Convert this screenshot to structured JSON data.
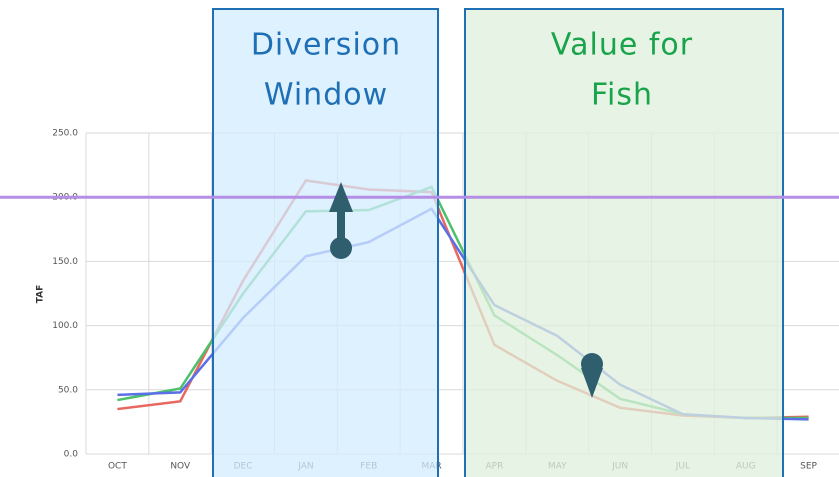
{
  "chart_data": {
    "type": "line",
    "y_label": "TAF",
    "categories": [
      "OCT",
      "NOV",
      "DEC",
      "JAN",
      "FEB",
      "MAR",
      "APR",
      "MAY",
      "JUN",
      "JUL",
      "AUG",
      "SEP"
    ],
    "series": [
      {
        "color": "#e8675f",
        "values": [
          35,
          41,
          135,
          213,
          206,
          204,
          85,
          57,
          36,
          30,
          28,
          29
        ]
      },
      {
        "color": "#4cc06a",
        "values": [
          42,
          51,
          125,
          189,
          190,
          208,
          108,
          77,
          43,
          31,
          28,
          28
        ]
      },
      {
        "color": "#5b6fe6",
        "values": [
          46,
          48,
          106,
          154,
          165,
          191,
          116,
          92,
          54,
          31,
          28,
          27
        ]
      }
    ],
    "ylim": [
      0,
      250
    ],
    "yticks": [
      {
        "value": 0,
        "label": "0.0"
      },
      {
        "value": 50,
        "label": "50.0"
      },
      {
        "value": 100,
        "label": "100.0"
      },
      {
        "value": 150,
        "label": "150.0"
      },
      {
        "value": 200,
        "label": "200.0"
      },
      {
        "value": 250,
        "label": "250.0"
      }
    ],
    "grid": true,
    "reference_line": {
      "value": 200,
      "color": "#b58ee6"
    },
    "annotations": [
      {
        "lines": [
          "Diversion",
          "Window"
        ]
      },
      {
        "lines": [
          "Value for",
          "Fish"
        ]
      }
    ]
  }
}
